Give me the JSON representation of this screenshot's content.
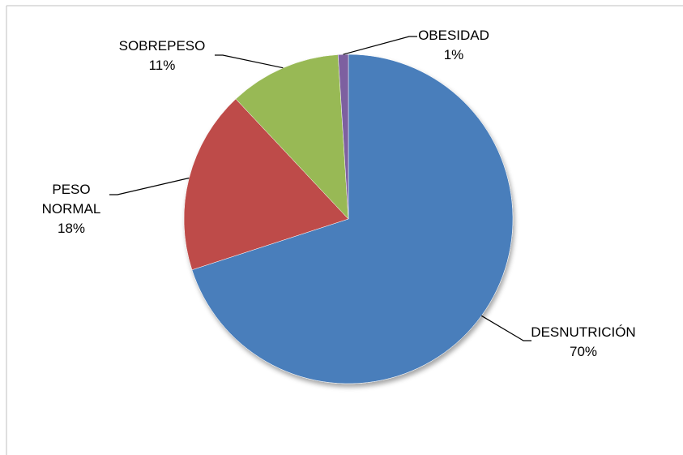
{
  "chart_data": {
    "type": "pie",
    "categories": [
      "DESNUTRICIÓN",
      "PESO NORMAL",
      "SOBREPESO",
      "OBESIDAD"
    ],
    "values": [
      70,
      18,
      11,
      1
    ],
    "value_labels": [
      "70%",
      "18%",
      "11%",
      "1%"
    ],
    "colors": [
      "#4a7ebb",
      "#be4b48",
      "#98b954",
      "#7d60a0"
    ]
  }
}
